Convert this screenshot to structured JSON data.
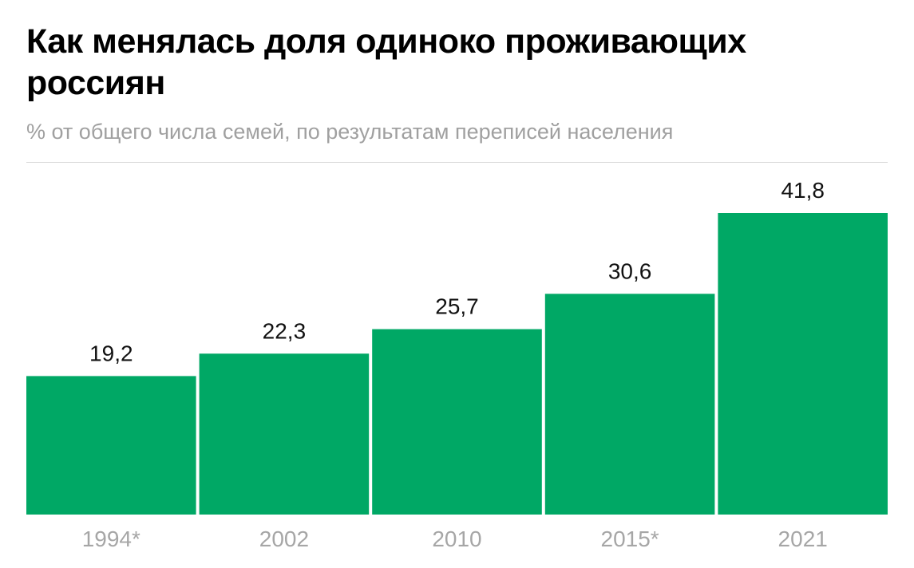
{
  "title": "Как менялась доля одиноко проживающих россиян",
  "subtitle": "% от общего числа семей, по результатам переписей населения",
  "colors": {
    "bar": "#00a865",
    "value_label": "#111111",
    "category_label": "#a6a6a6",
    "divider": "#d9d9d9"
  },
  "chart_data": {
    "type": "bar",
    "categories": [
      "1994*",
      "2002",
      "2010",
      "2015*",
      "2021"
    ],
    "values": [
      19.2,
      22.3,
      25.7,
      30.6,
      41.8
    ],
    "value_labels": [
      "19,2",
      "22,3",
      "25,7",
      "30,6",
      "41,8"
    ],
    "title": "Как менялась доля одиноко проживающих россиян",
    "subtitle": "% от общего числа семей, по результатам переписей населения",
    "xlabel": "",
    "ylabel": "",
    "ylim": [
      0,
      41.8
    ],
    "grid": false,
    "legend": "none"
  }
}
